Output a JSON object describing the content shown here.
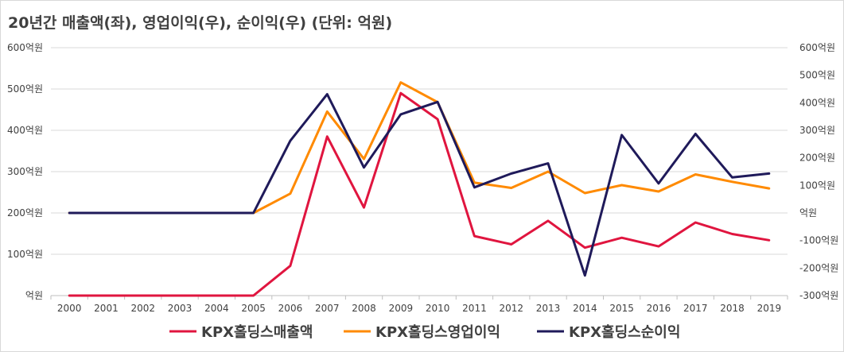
{
  "title": "20년간 매출액(좌), 영업이익(우), 순이익(우) (단위: 억원)",
  "chart_data": {
    "type": "line",
    "title": "20년간 매출액(좌), 영업이익(우), 순이익(우) (단위: 억원)",
    "x": [
      "2000",
      "2001",
      "2002",
      "2003",
      "2004",
      "2005",
      "2006",
      "2007",
      "2008",
      "2009",
      "2010",
      "2011",
      "2012",
      "2013",
      "2014",
      "2015",
      "2016",
      "2017",
      "2018",
      "2019"
    ],
    "y_left": {
      "range": [
        0,
        600
      ],
      "ticks": [
        0,
        100,
        200,
        300,
        400,
        500,
        600
      ],
      "tick_labels": [
        "억원",
        "100억원",
        "200억원",
        "300억원",
        "400억원",
        "500억원",
        "600억원"
      ]
    },
    "y_right": {
      "range": [
        -300,
        600
      ],
      "ticks": [
        -300,
        -200,
        -100,
        0,
        100,
        200,
        300,
        400,
        500,
        600
      ],
      "tick_labels": [
        "-300억원",
        "-200억원",
        "-100억원",
        "억원",
        "100억원",
        "200억원",
        "300억원",
        "400억원",
        "500억원",
        "600억원"
      ]
    },
    "grid": true,
    "legend_position": "bottom",
    "series": [
      {
        "name": "KPX홀딩스매출액",
        "axis": "left",
        "color": "#e0153f",
        "values": [
          0,
          0,
          0,
          0,
          0,
          0,
          72,
          385,
          213,
          490,
          427,
          144,
          124,
          181,
          116,
          140,
          119,
          177,
          149,
          134
        ]
      },
      {
        "name": "KPX홀딩스영업이익",
        "axis": "right",
        "color": "#ff8a00",
        "values": [
          0,
          0,
          0,
          0,
          0,
          0,
          70,
          368,
          196,
          474,
          402,
          110,
          91,
          150,
          72,
          101,
          78,
          140,
          113,
          89
        ]
      },
      {
        "name": "KPX홀딩스순이익",
        "axis": "right",
        "color": "#1f1a5a",
        "values": [
          0,
          0,
          0,
          0,
          0,
          0,
          262,
          431,
          165,
          358,
          403,
          93,
          143,
          180,
          -227,
          283,
          107,
          287,
          129,
          143
        ]
      }
    ]
  }
}
